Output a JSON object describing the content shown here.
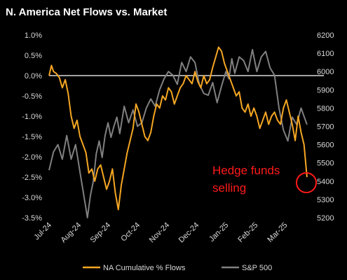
{
  "chart_data": {
    "type": "line",
    "title": "N. America Net Flows vs. Market",
    "x_categories": [
      "Jul-24",
      "Aug-24",
      "Sep-24",
      "Oct-24",
      "Nov-24",
      "Dec-24",
      "Jan-25",
      "Feb-25",
      "Mar-25"
    ],
    "left_axis": {
      "ticks": [
        "1.0%",
        "0.5%",
        "0.0%",
        "-0.5%",
        "-1.0%",
        "-1.5%",
        "-2.0%",
        "-2.5%",
        "-3.0%",
        "-3.5%"
      ],
      "ylim": [
        -3.5,
        1.0
      ],
      "unit": "%"
    },
    "right_axis": {
      "ticks": [
        "6200",
        "6100",
        "6000",
        "5900",
        "5800",
        "5700",
        "5600",
        "5500",
        "5400",
        "5300",
        "5200"
      ],
      "ylim": [
        5200,
        6200
      ]
    },
    "series": [
      {
        "name": "NA Cumulative % Flows",
        "axis": "left",
        "color": "#f5a623",
        "x": [
          0,
          0.08,
          0.15,
          0.25,
          0.35,
          0.45,
          0.55,
          0.65,
          0.75,
          0.85,
          0.95,
          1.05,
          1.15,
          1.25,
          1.35,
          1.45,
          1.55,
          1.65,
          1.75,
          1.85,
          1.95,
          2.05,
          2.15,
          2.25,
          2.35,
          2.45,
          2.55,
          2.65,
          2.75,
          2.85,
          2.95,
          3.05,
          3.15,
          3.25,
          3.35,
          3.45,
          3.55,
          3.65,
          3.75,
          3.85,
          3.95,
          4.05,
          4.15,
          4.25,
          4.35,
          4.45,
          4.55,
          4.65,
          4.75,
          4.85,
          4.95,
          5.05,
          5.15,
          5.25,
          5.35,
          5.45,
          5.55,
          5.65,
          5.75,
          5.85,
          5.95,
          6.05,
          6.15,
          6.25,
          6.35,
          6.45,
          6.55,
          6.65,
          6.75,
          6.85,
          6.95,
          7.05,
          7.15,
          7.25,
          7.35,
          7.45,
          7.55,
          7.65,
          7.75,
          7.85,
          7.95,
          8.05,
          8.15,
          8.25,
          8.35,
          8.45,
          8.55,
          8.65,
          8.75
        ],
        "values": [
          0.0,
          0.25,
          0.1,
          0.05,
          -0.05,
          -0.3,
          -0.1,
          -0.45,
          -1.0,
          -1.3,
          -1.1,
          -1.5,
          -1.7,
          -1.9,
          -2.4,
          -2.3,
          -2.6,
          -2.3,
          -2.2,
          -2.5,
          -2.8,
          -2.6,
          -2.3,
          -2.9,
          -3.3,
          -2.7,
          -2.3,
          -1.9,
          -1.6,
          -1.3,
          -0.7,
          -0.9,
          -1.2,
          -1.5,
          -1.6,
          -1.4,
          -1.0,
          -0.7,
          -0.8,
          -0.5,
          -0.6,
          -0.3,
          -0.4,
          -0.7,
          -0.5,
          -0.3,
          -0.2,
          0.0,
          -0.1,
          -0.2,
          0.1,
          -0.15,
          -0.3,
          0.0,
          -0.2,
          -0.1,
          0.2,
          0.45,
          0.7,
          0.6,
          0.3,
          0.1,
          -0.1,
          -0.3,
          -0.5,
          -0.4,
          -0.8,
          -0.9,
          -0.7,
          -1.0,
          -0.8,
          -1.0,
          -1.3,
          -1.1,
          -0.9,
          -1.2,
          -1.0,
          -0.9,
          -1.1,
          -1.2,
          -0.8,
          -0.6,
          -0.9,
          -1.2,
          -1.6,
          -1.0,
          -1.4,
          -1.7,
          -2.5
        ]
      },
      {
        "name": "S&P 500",
        "axis": "right",
        "color": "#808080",
        "x": [
          0,
          0.15,
          0.3,
          0.45,
          0.6,
          0.75,
          0.9,
          1.05,
          1.2,
          1.3,
          1.4,
          1.5,
          1.6,
          1.7,
          1.8,
          1.9,
          2.0,
          2.1,
          2.2,
          2.3,
          2.4,
          2.55,
          2.7,
          2.85,
          3.0,
          3.15,
          3.3,
          3.45,
          3.6,
          3.75,
          3.9,
          4.05,
          4.2,
          4.35,
          4.5,
          4.65,
          4.8,
          4.95,
          5.1,
          5.25,
          5.4,
          5.55,
          5.7,
          5.85,
          6.0,
          6.1,
          6.2,
          6.3,
          6.45,
          6.6,
          6.75,
          6.9,
          7.05,
          7.2,
          7.35,
          7.5,
          7.65,
          7.8,
          7.95,
          8.1,
          8.25,
          8.4,
          8.55,
          8.75
        ],
        "values": [
          5460,
          5560,
          5600,
          5520,
          5650,
          5520,
          5600,
          5450,
          5300,
          5200,
          5320,
          5400,
          5550,
          5620,
          5530,
          5650,
          5720,
          5640,
          5700,
          5750,
          5660,
          5810,
          5720,
          5790,
          5700,
          5720,
          5800,
          5850,
          5810,
          5900,
          5960,
          6000,
          5980,
          5930,
          6050,
          6000,
          6080,
          6050,
          5930,
          5880,
          5870,
          5940,
          5830,
          5920,
          6000,
          5960,
          6070,
          5990,
          6080,
          6060,
          6000,
          6120,
          6000,
          6080,
          6110,
          6020,
          5980,
          5800,
          5680,
          5620,
          5750,
          5710,
          5800,
          5710
        ]
      }
    ],
    "annotation": {
      "lines": [
        "Hedge funds",
        "selling"
      ],
      "color": "#ff1a1a"
    },
    "legend": {
      "position": "bottom",
      "entries": [
        "NA Cumulative % Flows",
        "S&P 500"
      ]
    },
    "grid": false
  }
}
